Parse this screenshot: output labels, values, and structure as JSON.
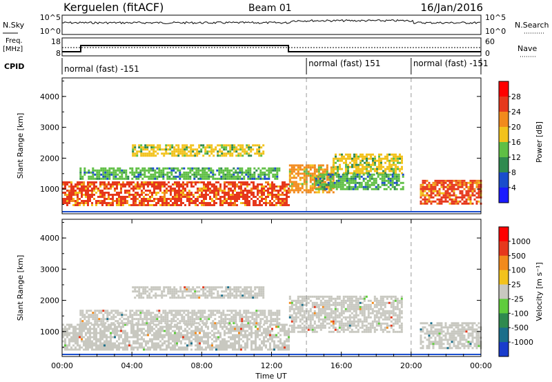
{
  "header": {
    "station": "Kerguelen (fitACF)",
    "beam": "Beam 01",
    "date": "16/Jan/2016"
  },
  "noise_panel": {
    "left_label": "N.Sky",
    "right_label": "N.Search",
    "left_ticks": [
      "10^5",
      "10^0"
    ],
    "right_ticks": [
      "10^5",
      "10^0"
    ]
  },
  "freq_panel": {
    "left_label_1": "Freq.",
    "left_label_2": "[MHz]",
    "right_label": "Nave",
    "left_ticks": [
      "18",
      "8"
    ],
    "right_ticks": [
      "60",
      "0"
    ]
  },
  "cpid_panel": {
    "label": "CPID",
    "segments": [
      {
        "text": "normal (fast) -151",
        "start_h": 0,
        "end_h": 14
      },
      {
        "text": "normal (fast) 151",
        "start_h": 14,
        "end_h": 20
      },
      {
        "text": "normal (fast) -151",
        "start_h": 20,
        "end_h": 24
      }
    ]
  },
  "chart_data": [
    {
      "type": "heatmap",
      "name": "power",
      "ylabel": "Slant Range [km]",
      "yticks": [
        "1000",
        "2000",
        "3000",
        "4000"
      ],
      "ylim": [
        200,
        4600
      ],
      "xlim": [
        0,
        24
      ],
      "colorbar_label": "Power [dB]",
      "colorbar_ticks": [
        "4",
        "8",
        "12",
        "16",
        "20",
        "24",
        "28"
      ],
      "colorbar_colors": [
        "#1a1aff",
        "#1a4dcc",
        "#2f8a4f",
        "#5fbf45",
        "#f2c21c",
        "#f28a1c",
        "#e6381c",
        "#ff0000"
      ],
      "bands": [
        {
          "start_h": 0.0,
          "end_h": 13.0,
          "r_low": 450,
          "r_high": 1250,
          "value": 26
        },
        {
          "start_h": 1.0,
          "end_h": 12.5,
          "r_low": 1300,
          "r_high": 1700,
          "value": 14
        },
        {
          "start_h": 4.0,
          "end_h": 11.5,
          "r_low": 2100,
          "r_high": 2450,
          "value": 16
        },
        {
          "start_h": 13.0,
          "end_h": 15.5,
          "r_low": 900,
          "r_high": 1800,
          "value": 22
        },
        {
          "start_h": 15.5,
          "end_h": 19.5,
          "r_low": 1500,
          "r_high": 2150,
          "value": 18
        },
        {
          "start_h": 14.5,
          "end_h": 19.5,
          "r_low": 1000,
          "r_high": 1500,
          "value": 14
        },
        {
          "start_h": 20.5,
          "end_h": 24.0,
          "r_low": 500,
          "r_high": 1300,
          "value": 26
        }
      ],
      "markers_h": [
        14,
        20
      ]
    },
    {
      "type": "heatmap",
      "name": "velocity",
      "ylabel": "Slant Range [km]",
      "yticks": [
        "1000",
        "2000",
        "3000",
        "4000"
      ],
      "ylim": [
        200,
        4600
      ],
      "xlim": [
        0,
        24
      ],
      "xticks": [
        "00:00",
        "04:00",
        "08:00",
        "12:00",
        "16:00",
        "20:00",
        "00:00"
      ],
      "xlabel": "Time UT",
      "colorbar_label": "Velocity [m s⁻¹]",
      "colorbar_ticks": [
        "1000",
        "500",
        "100",
        "25",
        "-25",
        "-100",
        "-500",
        "-1000"
      ],
      "colorbar_colors": [
        "#1a3ccc",
        "#1a6e8a",
        "#2f8a4f",
        "#5fcc3c",
        "#c8c8c0",
        "#f2c21c",
        "#f28a1c",
        "#e6381c",
        "#ff0000"
      ],
      "bands": [
        {
          "start_h": 0.0,
          "end_h": 13.0,
          "r_low": 450,
          "r_high": 1250,
          "value": 0
        },
        {
          "start_h": 1.0,
          "end_h": 12.5,
          "r_low": 1300,
          "r_high": 1700,
          "value": 0
        },
        {
          "start_h": 4.0,
          "end_h": 11.5,
          "r_low": 2100,
          "r_high": 2450,
          "value": 0
        },
        {
          "start_h": 13.0,
          "end_h": 19.5,
          "r_low": 1000,
          "r_high": 2150,
          "value": 0
        },
        {
          "start_h": 20.5,
          "end_h": 24.0,
          "r_low": 500,
          "r_high": 1300,
          "value": 0
        }
      ],
      "markers_h": [
        14,
        20
      ]
    }
  ]
}
